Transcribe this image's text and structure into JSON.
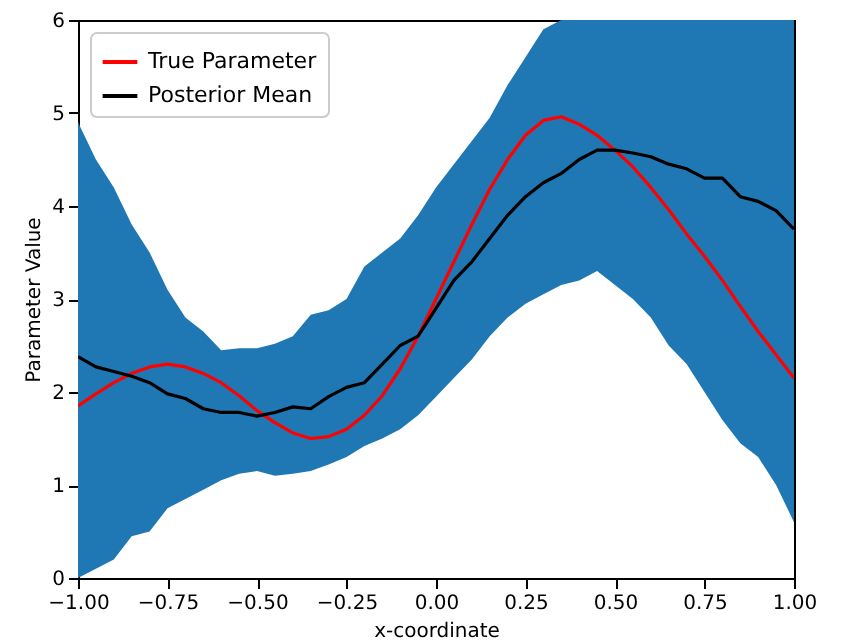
{
  "chart_data": {
    "type": "line",
    "xlabel": "x-coordinate",
    "ylabel": "Parameter Value",
    "x": [
      -1,
      -0.95,
      -0.9,
      -0.85,
      -0.8,
      -0.75,
      -0.7,
      -0.65,
      -0.6,
      -0.55,
      -0.5,
      -0.45,
      -0.4,
      -0.35,
      -0.3,
      -0.25,
      -0.2,
      -0.15,
      -0.1,
      -0.05,
      0,
      0.05,
      0.1,
      0.15,
      0.2,
      0.25,
      0.3,
      0.35,
      0.4,
      0.45,
      0.5,
      0.55,
      0.6,
      0.65,
      0.7,
      0.75,
      0.8,
      0.85,
      0.9,
      0.95,
      1
    ],
    "series": [
      {
        "name": "True Parameter",
        "color": "#ff0000",
        "values": [
          1.85,
          1.98,
          2.1,
          2.2,
          2.27,
          2.3,
          2.27,
          2.2,
          2.1,
          1.96,
          1.8,
          1.67,
          1.56,
          1.5,
          1.52,
          1.6,
          1.75,
          1.96,
          2.25,
          2.6,
          3.0,
          3.4,
          3.8,
          4.18,
          4.5,
          4.76,
          4.92,
          4.96,
          4.88,
          4.76,
          4.6,
          4.42,
          4.2,
          3.96,
          3.7,
          3.46,
          3.2,
          2.92,
          2.65,
          2.4,
          2.15
        ]
      },
      {
        "name": "Posterior Mean",
        "color": "#000000",
        "values": [
          2.38,
          2.27,
          2.22,
          2.17,
          2.1,
          1.98,
          1.93,
          1.82,
          1.78,
          1.78,
          1.74,
          1.78,
          1.84,
          1.82,
          1.95,
          2.05,
          2.1,
          2.3,
          2.5,
          2.6,
          2.9,
          3.2,
          3.4,
          3.65,
          3.9,
          4.1,
          4.25,
          4.35,
          4.5,
          4.6,
          4.6,
          4.57,
          4.53,
          4.45,
          4.4,
          4.3,
          4.3,
          4.1,
          4.05,
          3.95,
          3.75
        ],
        "lower": [
          0,
          0.1,
          0.2,
          0.45,
          0.5,
          0.75,
          0.85,
          0.95,
          1.05,
          1.12,
          1.15,
          1.1,
          1.12,
          1.15,
          1.22,
          1.3,
          1.42,
          1.5,
          1.6,
          1.75,
          1.95,
          2.15,
          2.35,
          2.6,
          2.8,
          2.95,
          3.05,
          3.15,
          3.2,
          3.3,
          3.15,
          3.0,
          2.8,
          2.5,
          2.3,
          2.0,
          1.7,
          1.45,
          1.3,
          1.0,
          0.6
        ],
        "upper": [
          4.9,
          4.5,
          4.2,
          3.8,
          3.5,
          3.1,
          2.8,
          2.65,
          2.45,
          2.47,
          2.47,
          2.52,
          2.6,
          2.83,
          2.88,
          3.0,
          3.35,
          3.5,
          3.65,
          3.9,
          4.2,
          4.45,
          4.7,
          4.95,
          5.3,
          5.6,
          5.9,
          6,
          6,
          6,
          6,
          6,
          6,
          6,
          6,
          6,
          6,
          6,
          6,
          6,
          6
        ]
      }
    ],
    "xlim": [
      -1,
      1
    ],
    "xticks": [
      {
        "value": -1,
        "label": "−1.00"
      },
      {
        "value": -0.75,
        "label": "−0.75"
      },
      {
        "value": -0.5,
        "label": "−0.50"
      },
      {
        "value": -0.25,
        "label": "−0.25"
      },
      {
        "value": 0,
        "label": "0.00"
      },
      {
        "value": 0.25,
        "label": "0.25"
      },
      {
        "value": 0.5,
        "label": "0.50"
      },
      {
        "value": 0.75,
        "label": "0.75"
      },
      {
        "value": 1,
        "label": "1.00"
      }
    ],
    "ylim": [
      0,
      6
    ],
    "yticks": [
      0,
      1,
      2,
      3,
      4,
      5,
      6
    ],
    "grid": false,
    "legend": "top left",
    "marker": "none",
    "line_style": "solid"
  }
}
